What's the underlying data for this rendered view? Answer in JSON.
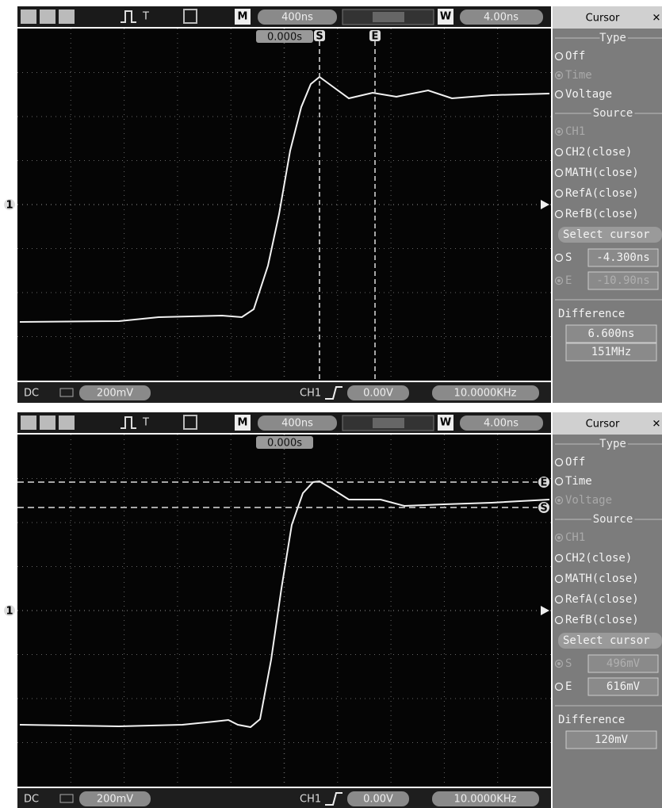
{
  "panels": [
    {
      "toolbar": {
        "trigger": "T",
        "memory": "M",
        "timebase": "400ns",
        "window": "W",
        "window_timebase": "4.00ns",
        "menu_title": "Cursor",
        "trigger_position": "0.000s",
        "channel": "1"
      },
      "cursors": {
        "labels": [
          "S",
          "E"
        ]
      },
      "menu": {
        "type_heading": "Type",
        "type_options": [
          {
            "label": "Off"
          },
          {
            "label": "Time",
            "active": true
          },
          {
            "label": "Voltage"
          }
        ],
        "source_heading": "Source",
        "source_options": [
          {
            "label": "CH1",
            "active": true
          },
          {
            "label": "CH2(close)"
          },
          {
            "label": "MATH(close)"
          },
          {
            "label": "RefA(close)"
          },
          {
            "label": "RefB(close)"
          }
        ],
        "select_button": "Select cursor",
        "cursor_values": [
          {
            "label": "S",
            "value": "-4.300ns"
          },
          {
            "label": "E",
            "value": "-10.90ns",
            "active": true
          }
        ],
        "difference_heading": "Difference",
        "difference_values": [
          "6.600ns",
          "151MHz"
        ]
      },
      "status": {
        "coupling": "DC",
        "volts_div": "200mV",
        "trigger_source": "CH1",
        "trigger_level": "0.00V",
        "frequency": "10.0000KHz"
      }
    },
    {
      "toolbar": {
        "trigger": "T",
        "memory": "M",
        "timebase": "400ns",
        "window": "W",
        "window_timebase": "4.00ns",
        "menu_title": "Cursor",
        "trigger_position": "0.000s",
        "channel": "1"
      },
      "cursors": {
        "labels": [
          "E",
          "S"
        ]
      },
      "menu": {
        "type_heading": "Type",
        "type_options": [
          {
            "label": "Off"
          },
          {
            "label": "Time"
          },
          {
            "label": "Voltage",
            "active": true
          }
        ],
        "source_heading": "Source",
        "source_options": [
          {
            "label": "CH1",
            "active": true
          },
          {
            "label": "CH2(close)"
          },
          {
            "label": "MATH(close)"
          },
          {
            "label": "RefA(close)"
          },
          {
            "label": "RefB(close)"
          }
        ],
        "select_button": "Select cursor",
        "cursor_values": [
          {
            "label": "S",
            "value": "496mV",
            "active": true
          },
          {
            "label": "E",
            "value": "616mV"
          }
        ],
        "difference_heading": "Difference",
        "difference_values": [
          "120mV"
        ]
      },
      "status": {
        "coupling": "DC",
        "volts_div": "200mV",
        "trigger_source": "CH1",
        "trigger_level": "0.00V",
        "frequency": "10.0000KHz"
      }
    }
  ]
}
